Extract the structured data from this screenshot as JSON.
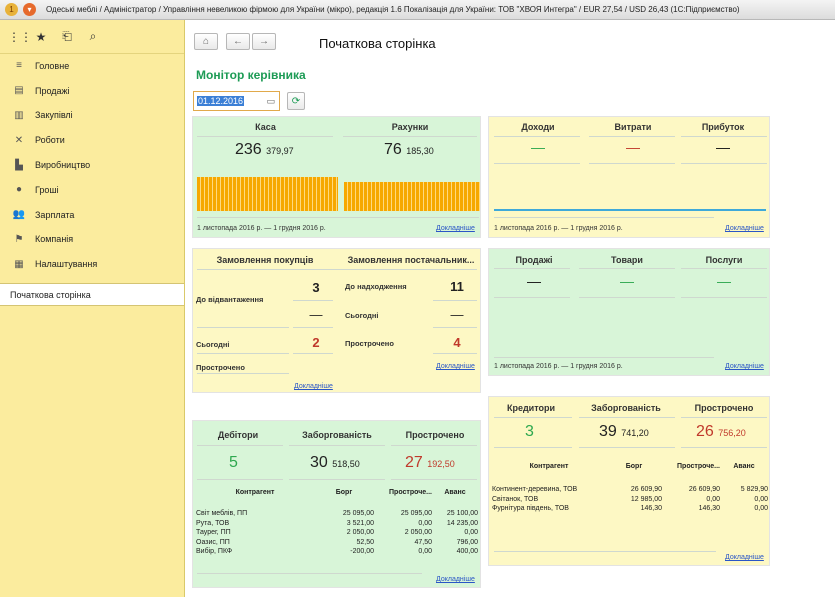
{
  "window": {
    "title": "Одеські меблі / Адміністратор / Управління невеликою фірмою для України (мікро), редакція 1.6 Покалізація для України: ТОВ \"ХВОЯ Интегра\" / EUR 27,54 / USD 26,43  (1С:Підприємство)"
  },
  "sidebar": {
    "items": [
      {
        "label": "Головне",
        "icon": "list-icon"
      },
      {
        "label": "Продажі",
        "icon": "basket-icon"
      },
      {
        "label": "Закупівлі",
        "icon": "purchase-icon"
      },
      {
        "label": "Роботи",
        "icon": "tools-icon"
      },
      {
        "label": "Виробництво",
        "icon": "factory-icon"
      },
      {
        "label": "Гроші",
        "icon": "money-icon"
      },
      {
        "label": "Зарплата",
        "icon": "people-icon"
      },
      {
        "label": "Компанія",
        "icon": "flag-icon"
      },
      {
        "label": "Налаштування",
        "icon": "settings-icon"
      }
    ],
    "active_item": "Початкова сторінка"
  },
  "nav": {
    "page_title": "Початкова сторінка"
  },
  "monitor": {
    "title": "Монітор керівника",
    "date": "01.12.2016"
  },
  "cash": {
    "kasa_label": "Каса",
    "kasa_int": "236",
    "kasa_dec": "379,97",
    "rahunky_label": "Рахунки",
    "rahunky_int": "76",
    "rahunky_dec": "185,30",
    "period": "1 листопада 2016 р. — 1 грудня 2016 р.",
    "details": "Докладніше"
  },
  "income": {
    "dohody": "Доходи",
    "vytraty": "Витрати",
    "prybutok": "Прибуток",
    "dohody_val": "—",
    "vytraty_val": "—",
    "prybutok_val": "—",
    "period": "1 листопада 2016 р. — 1 грудня 2016 р.",
    "details": "Докладніше"
  },
  "orders": {
    "col1": "Замовлення покупців",
    "col2": "Замовлення постачальник...",
    "ship_label": "До відвантаження",
    "ship_val": "3",
    "recv_label": "До надходження",
    "recv_val": "11",
    "today_label": "Сьогодні",
    "today1": "2",
    "today2_dash": "—",
    "today2_label": "Сьогодні",
    "dash1": "—",
    "overdue_label": "Прострочено",
    "overdue2_label": "Прострочено",
    "overdue2_val": "4",
    "details": "Докладніше"
  },
  "sales": {
    "prodazhi": "Продажі",
    "tovary": "Товари",
    "poslugy": "Послуги",
    "prodazhi_val": "—",
    "tovary_val": "—",
    "poslugy_val": "—",
    "period": "1 листопада 2016 р. — 1 грудня 2016 р.",
    "details": "Докладніше"
  },
  "debtors": {
    "h1": "Дебітори",
    "h2": "Заборгованість",
    "h3": "Прострочено",
    "count": "5",
    "debt_int": "30",
    "debt_dec": "518,50",
    "over_int": "27",
    "over_dec": "192,50",
    "columns": [
      "Контрагент",
      "Борг",
      "Простроче...",
      "Аванс"
    ],
    "rows": [
      [
        "Світ меблів, ПП",
        "25 095,00",
        "25 095,00",
        "25 100,00"
      ],
      [
        "Рута, ТОВ",
        "3 521,00",
        "0,00",
        "14 235,00"
      ],
      [
        "Таурег, ПП",
        "2 050,00",
        "2 050,00",
        "0,00"
      ],
      [
        "Оазис, ПП",
        "52,50",
        "47,50",
        "796,00"
      ],
      [
        "Вибір, ПКФ",
        "-200,00",
        "0,00",
        "400,00"
      ]
    ],
    "details": "Докладніше"
  },
  "creditors": {
    "h1": "Кредитори",
    "h2": "Заборгованість",
    "h3": "Прострочено",
    "count": "3",
    "debt_int": "39",
    "debt_dec": "741,20",
    "over_int": "26",
    "over_dec": "756,20",
    "columns": [
      "Контрагент",
      "Борг",
      "Простроче...",
      "Аванс"
    ],
    "rows": [
      [
        "Континент-деревина, ТОВ",
        "26 609,90",
        "26 609,90",
        "5 829,90"
      ],
      [
        "Світанок, ТОВ",
        "12 985,00",
        "0,00",
        "0,00"
      ],
      [
        "Фурнітура південь, ТОВ",
        "146,30",
        "146,30",
        "0,00"
      ]
    ],
    "details": "Докладніше"
  },
  "colors": {
    "green_accent": "#1d9b55",
    "red_accent": "#c0392b",
    "bar_orange": "#f6a800"
  }
}
